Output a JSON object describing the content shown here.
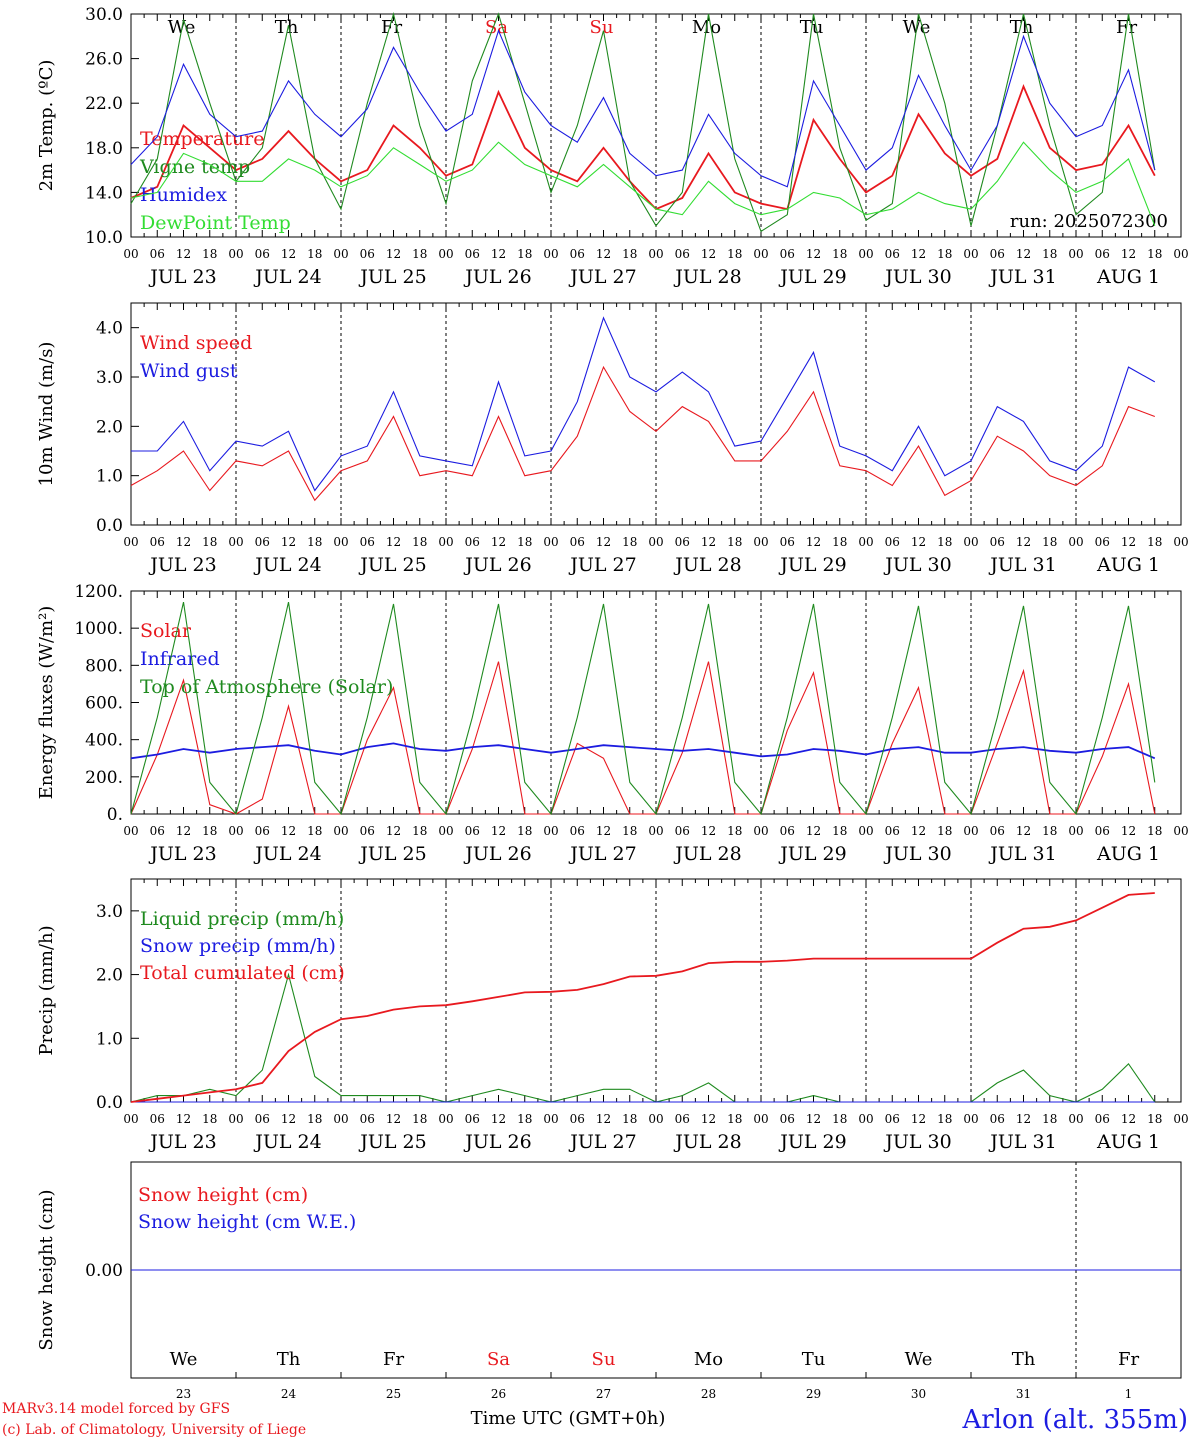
{
  "run_label": "run: 2025072300",
  "x_hour_ticks": [
    "00",
    "06",
    "12",
    "18"
  ],
  "day_labels": [
    "JUL 23",
    "JUL 24",
    "JUL 25",
    "JUL 26",
    "JUL 27",
    "JUL 28",
    "JUL 29",
    "JUL 30",
    "JUL 31",
    "AUG  1"
  ],
  "weekdays": [
    {
      "label": "We",
      "color": "#000000"
    },
    {
      "label": "Th",
      "color": "#000000"
    },
    {
      "label": "Fr",
      "color": "#000000"
    },
    {
      "label": "Sa",
      "color": "#e8191f"
    },
    {
      "label": "Su",
      "color": "#e8191f"
    },
    {
      "label": "Mo",
      "color": "#000000"
    },
    {
      "label": "Tu",
      "color": "#000000"
    },
    {
      "label": "We",
      "color": "#000000"
    },
    {
      "label": "Th",
      "color": "#000000"
    },
    {
      "label": "Fr",
      "color": "#000000"
    }
  ],
  "bottom_dates": [
    "23",
    "24",
    "25",
    "26",
    "27",
    "28",
    "29",
    "30",
    "31",
    "1"
  ],
  "footer": {
    "credit_line1": "MARv3.14 model forced by GFS",
    "credit_line2": "(c) Lab. of Climatology, University of Liege",
    "time_label": "Time UTC (GMT+0h)",
    "station": "Arlon (alt. 355m)"
  },
  "colors": {
    "red": "#e8191f",
    "green": "#1f8a1f",
    "blue": "#1c1ce0",
    "lightgreen": "#33dd33"
  },
  "chart_data": [
    {
      "type": "line",
      "ylabel": "2m Temp. (ºC)",
      "ylim": [
        10,
        30
      ],
      "ytick_labels": [
        "10.0",
        "14.0",
        "18.0",
        "22.0",
        "26.0",
        "30.0"
      ],
      "x_hours": [
        0,
        6,
        12,
        18,
        24,
        30,
        36,
        42,
        48,
        54,
        60,
        66,
        72,
        78,
        84,
        90,
        96,
        102,
        108,
        114,
        120,
        126,
        132,
        138,
        144,
        150,
        156,
        162,
        168,
        174,
        180,
        186,
        192,
        198,
        204,
        210,
        216,
        222,
        228,
        234
      ],
      "series": [
        {
          "name": "Temperature",
          "color": "#e8191f",
          "values": [
            13.5,
            14.5,
            20.0,
            18.0,
            16.0,
            17.0,
            19.5,
            17.0,
            15.0,
            16.0,
            20.0,
            18.0,
            15.5,
            16.5,
            23.0,
            18.0,
            16.0,
            15.0,
            18.0,
            15.0,
            12.5,
            13.5,
            17.5,
            14.0,
            13.0,
            12.5,
            20.5,
            17.0,
            14.0,
            15.5,
            21.0,
            17.5,
            15.5,
            17.0,
            23.5,
            18.0,
            16.0,
            16.5,
            20.0,
            15.5
          ]
        },
        {
          "name": "Vigne temp",
          "color": "#1f8a1f",
          "values": [
            13.0,
            17.0,
            29.5,
            22.0,
            15.0,
            18.0,
            29.0,
            17.0,
            12.5,
            22.0,
            30.0,
            20.0,
            13.0,
            24.0,
            30.0,
            22.0,
            14.0,
            20.0,
            28.5,
            15.0,
            11.0,
            14.0,
            30.0,
            17.0,
            10.5,
            12.0,
            30.5,
            18.0,
            11.5,
            13.0,
            31.0,
            22.0,
            11.0,
            20.0,
            31.0,
            20.0,
            12.0,
            14.0,
            30.0,
            16.0
          ]
        },
        {
          "name": "Humidex",
          "color": "#1c1ce0",
          "values": [
            16.5,
            19.0,
            25.5,
            21.0,
            19.0,
            19.5,
            24.0,
            21.0,
            19.0,
            21.5,
            27.0,
            23.0,
            19.5,
            21.0,
            28.5,
            23.0,
            20.0,
            18.5,
            22.5,
            17.5,
            15.5,
            16.0,
            21.0,
            17.5,
            15.5,
            14.5,
            24.0,
            20.0,
            16.0,
            18.0,
            24.5,
            20.0,
            16.0,
            20.0,
            28.0,
            22.0,
            19.0,
            20.0,
            25.0,
            16.0
          ]
        },
        {
          "name": "DewPoint Temp",
          "color": "#33dd33",
          "values": [
            13.5,
            14.0,
            17.5,
            16.5,
            15.0,
            15.0,
            17.0,
            16.0,
            14.5,
            15.5,
            18.0,
            16.5,
            15.0,
            16.0,
            18.5,
            16.5,
            15.5,
            14.5,
            16.5,
            14.5,
            12.5,
            12.0,
            15.0,
            13.0,
            12.0,
            12.5,
            14.0,
            13.5,
            12.0,
            12.5,
            14.0,
            13.0,
            12.5,
            15.0,
            18.5,
            16.0,
            14.0,
            15.0,
            17.0,
            11.0
          ]
        }
      ]
    },
    {
      "type": "line",
      "ylabel": "10m Wind (m/s)",
      "ylim": [
        0,
        4.5
      ],
      "ytick_labels": [
        "0.0",
        "1.0",
        "2.0",
        "3.0",
        "4.0"
      ],
      "x_hours": [
        0,
        6,
        12,
        18,
        24,
        30,
        36,
        42,
        48,
        54,
        60,
        66,
        72,
        78,
        84,
        90,
        96,
        102,
        108,
        114,
        120,
        126,
        132,
        138,
        144,
        150,
        156,
        162,
        168,
        174,
        180,
        186,
        192,
        198,
        204,
        210,
        216,
        222,
        228,
        234
      ],
      "series": [
        {
          "name": "Wind speed",
          "color": "#e8191f",
          "values": [
            0.8,
            1.1,
            1.5,
            0.7,
            1.3,
            1.2,
            1.5,
            0.5,
            1.1,
            1.3,
            2.2,
            1.0,
            1.1,
            1.0,
            2.2,
            1.0,
            1.1,
            1.8,
            3.2,
            2.3,
            1.9,
            2.4,
            2.1,
            1.3,
            1.3,
            1.9,
            2.7,
            1.2,
            1.1,
            0.8,
            1.6,
            0.6,
            0.9,
            1.8,
            1.5,
            1.0,
            0.8,
            1.2,
            2.4,
            2.2
          ]
        },
        {
          "name": "Wind gust",
          "color": "#1c1ce0",
          "values": [
            1.5,
            1.5,
            2.1,
            1.1,
            1.7,
            1.6,
            1.9,
            0.7,
            1.4,
            1.6,
            2.7,
            1.4,
            1.3,
            1.2,
            2.9,
            1.4,
            1.5,
            2.5,
            4.2,
            3.0,
            2.7,
            3.1,
            2.7,
            1.6,
            1.7,
            2.6,
            3.5,
            1.6,
            1.4,
            1.1,
            2.0,
            1.0,
            1.3,
            2.4,
            2.1,
            1.3,
            1.1,
            1.6,
            3.2,
            2.9
          ]
        }
      ]
    },
    {
      "type": "line",
      "ylabel": "Energy fluxes (W/m²)",
      "ylim": [
        0,
        1200
      ],
      "ytick_labels": [
        "0.",
        "200.",
        "400.",
        "600.",
        "800.",
        "1000.",
        "1200."
      ],
      "x_hours": [
        0,
        6,
        12,
        18,
        24,
        30,
        36,
        42,
        48,
        54,
        60,
        66,
        72,
        78,
        84,
        90,
        96,
        102,
        108,
        114,
        120,
        126,
        132,
        138,
        144,
        150,
        156,
        162,
        168,
        174,
        180,
        186,
        192,
        198,
        204,
        210,
        216,
        222,
        228,
        234
      ],
      "series": [
        {
          "name": "Solar",
          "color": "#e8191f",
          "values": [
            0,
            320,
            720,
            50,
            0,
            80,
            580,
            0,
            0,
            400,
            680,
            0,
            0,
            350,
            820,
            0,
            0,
            380,
            300,
            0,
            0,
            330,
            820,
            0,
            0,
            450,
            760,
            0,
            0,
            380,
            680,
            0,
            0,
            380,
            770,
            0,
            0,
            310,
            700,
            0
          ]
        },
        {
          "name": "Infrared",
          "color": "#1c1ce0",
          "values": [
            300,
            320,
            350,
            330,
            350,
            360,
            370,
            340,
            320,
            360,
            380,
            350,
            340,
            360,
            370,
            350,
            330,
            350,
            370,
            360,
            350,
            340,
            350,
            330,
            310,
            320,
            350,
            340,
            320,
            350,
            360,
            330,
            330,
            350,
            360,
            340,
            330,
            350,
            360,
            300
          ]
        },
        {
          "name": "Top of Atmosphere (Solar)",
          "color": "#1f8a1f",
          "values": [
            0,
            520,
            1140,
            170,
            0,
            520,
            1140,
            170,
            0,
            520,
            1130,
            170,
            0,
            520,
            1130,
            170,
            0,
            520,
            1130,
            170,
            0,
            520,
            1130,
            170,
            0,
            520,
            1130,
            170,
            0,
            520,
            1120,
            170,
            0,
            520,
            1120,
            170,
            0,
            520,
            1120,
            170
          ]
        }
      ]
    },
    {
      "type": "line",
      "ylabel": "Precip (mm/h)",
      "ylim": [
        0,
        3.5
      ],
      "ytick_labels": [
        "0.0",
        "1.0",
        "2.0",
        "3.0"
      ],
      "x_hours": [
        0,
        6,
        12,
        18,
        24,
        30,
        36,
        42,
        48,
        54,
        60,
        66,
        72,
        78,
        84,
        90,
        96,
        102,
        108,
        114,
        120,
        126,
        132,
        138,
        144,
        150,
        156,
        162,
        168,
        174,
        180,
        186,
        192,
        198,
        204,
        210,
        216,
        222,
        228,
        234
      ],
      "series": [
        {
          "name": "Liquid precip (mm/h)",
          "color": "#1f8a1f",
          "values": [
            0,
            0.1,
            0.1,
            0.2,
            0.1,
            0.5,
            2.0,
            0.4,
            0.1,
            0.1,
            0.1,
            0.1,
            0,
            0.1,
            0.2,
            0.1,
            0,
            0.1,
            0.2,
            0.2,
            0,
            0.1,
            0.3,
            0,
            0,
            0,
            0.1,
            0,
            0,
            0,
            0,
            0,
            0,
            0.3,
            0.5,
            0.1,
            0,
            0.2,
            0.6,
            0
          ]
        },
        {
          "name": "Snow precip (mm/h)",
          "color": "#1c1ce0",
          "values": [
            0,
            0,
            0,
            0,
            0,
            0,
            0,
            0,
            0,
            0,
            0,
            0,
            0,
            0,
            0,
            0,
            0,
            0,
            0,
            0,
            0,
            0,
            0,
            0,
            0,
            0,
            0,
            0,
            0,
            0,
            0,
            0,
            0,
            0,
            0,
            0,
            0,
            0,
            0,
            0
          ]
        },
        {
          "name": "Total cumulated (cm)",
          "color": "#e8191f",
          "values": [
            0,
            0.05,
            0.1,
            0.15,
            0.2,
            0.3,
            0.8,
            1.1,
            1.3,
            1.35,
            1.45,
            1.5,
            1.52,
            1.58,
            1.65,
            1.72,
            1.73,
            1.76,
            1.85,
            1.97,
            1.98,
            2.05,
            2.18,
            2.2,
            2.2,
            2.22,
            2.25,
            2.25,
            2.25,
            2.25,
            2.25,
            2.25,
            2.25,
            2.5,
            2.72,
            2.75,
            2.85,
            3.05,
            3.25,
            3.28
          ]
        }
      ]
    },
    {
      "type": "line",
      "ylabel": "Snow height (cm)",
      "ylim": [
        -1,
        1
      ],
      "ytick_labels": [
        "0.00"
      ],
      "x_hours": [
        0,
        240
      ],
      "series": [
        {
          "name": "Snow height (cm)",
          "color": "#e8191f",
          "values": [
            0,
            0
          ]
        },
        {
          "name": "Snow height (cm W.E.)",
          "color": "#1c1ce0",
          "values": [
            0,
            0
          ]
        }
      ]
    }
  ]
}
